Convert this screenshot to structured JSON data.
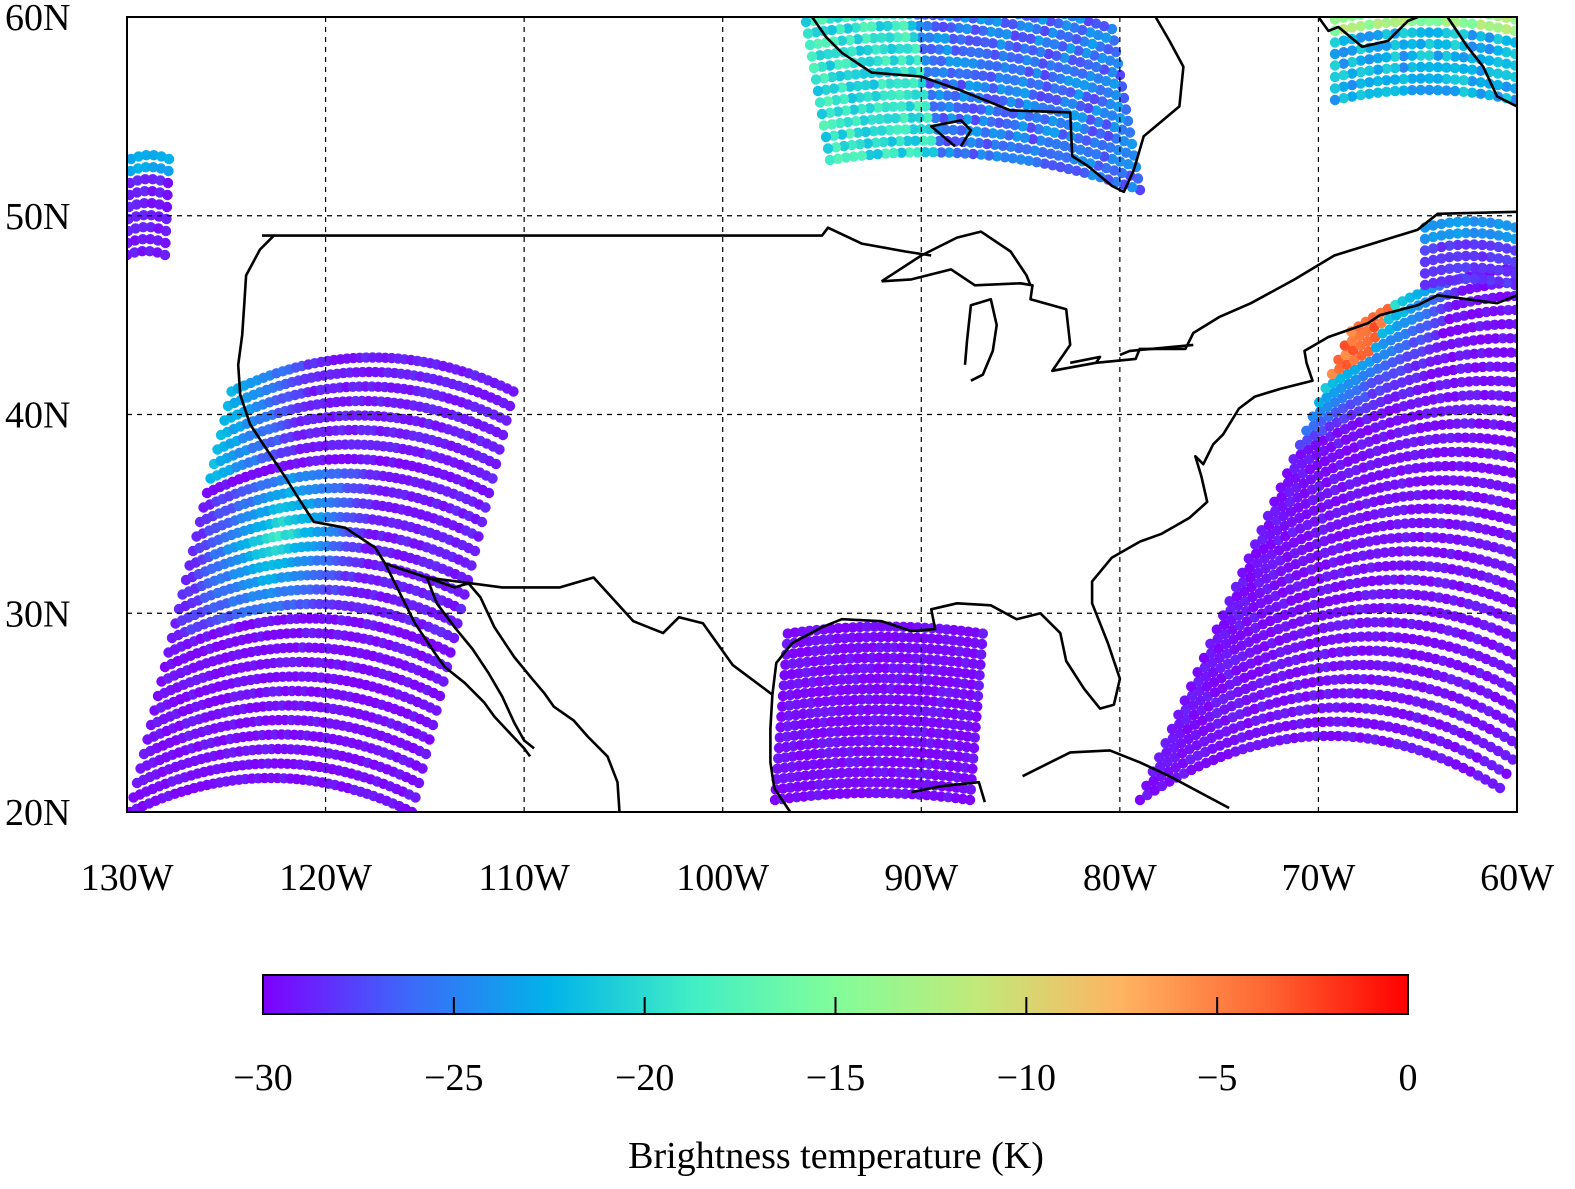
{
  "map": {
    "lon_range": [
      -130,
      -60
    ],
    "lat_range": [
      20,
      60
    ],
    "grid_lines": true,
    "lon_ticks": [
      {
        "value": -130,
        "label": "130W"
      },
      {
        "value": -120,
        "label": "120W"
      },
      {
        "value": -110,
        "label": "110W"
      },
      {
        "value": -100,
        "label": "100W"
      },
      {
        "value": -90,
        "label": "90W"
      },
      {
        "value": -80,
        "label": "80W"
      },
      {
        "value": -70,
        "label": "70W"
      },
      {
        "value": -60,
        "label": "60W"
      }
    ],
    "lat_ticks": [
      {
        "value": 20,
        "label": "20N"
      },
      {
        "value": 30,
        "label": "30N"
      },
      {
        "value": 40,
        "label": "40N"
      },
      {
        "value": 50,
        "label": "50N"
      },
      {
        "value": 60,
        "label": "60N"
      }
    ]
  },
  "colorbar": {
    "title": "Brightness temperature (K)",
    "range": [
      -30,
      0
    ],
    "colormap": "rainbow",
    "colors": [
      "#7f00ff",
      "#3e67fa",
      "#01b3e9",
      "#41eec5",
      "#82fd9a",
      "#c2e979",
      "#ffb361",
      "#ff6733",
      "#ff0000"
    ],
    "ticks": [
      {
        "value": -30,
        "label": "−30"
      },
      {
        "value": -25,
        "label": "−25"
      },
      {
        "value": -20,
        "label": "−20"
      },
      {
        "value": -15,
        "label": "−15"
      },
      {
        "value": -10,
        "label": "−10"
      },
      {
        "value": -5,
        "label": "−5"
      },
      {
        "value": 0,
        "label": "0"
      }
    ]
  }
}
